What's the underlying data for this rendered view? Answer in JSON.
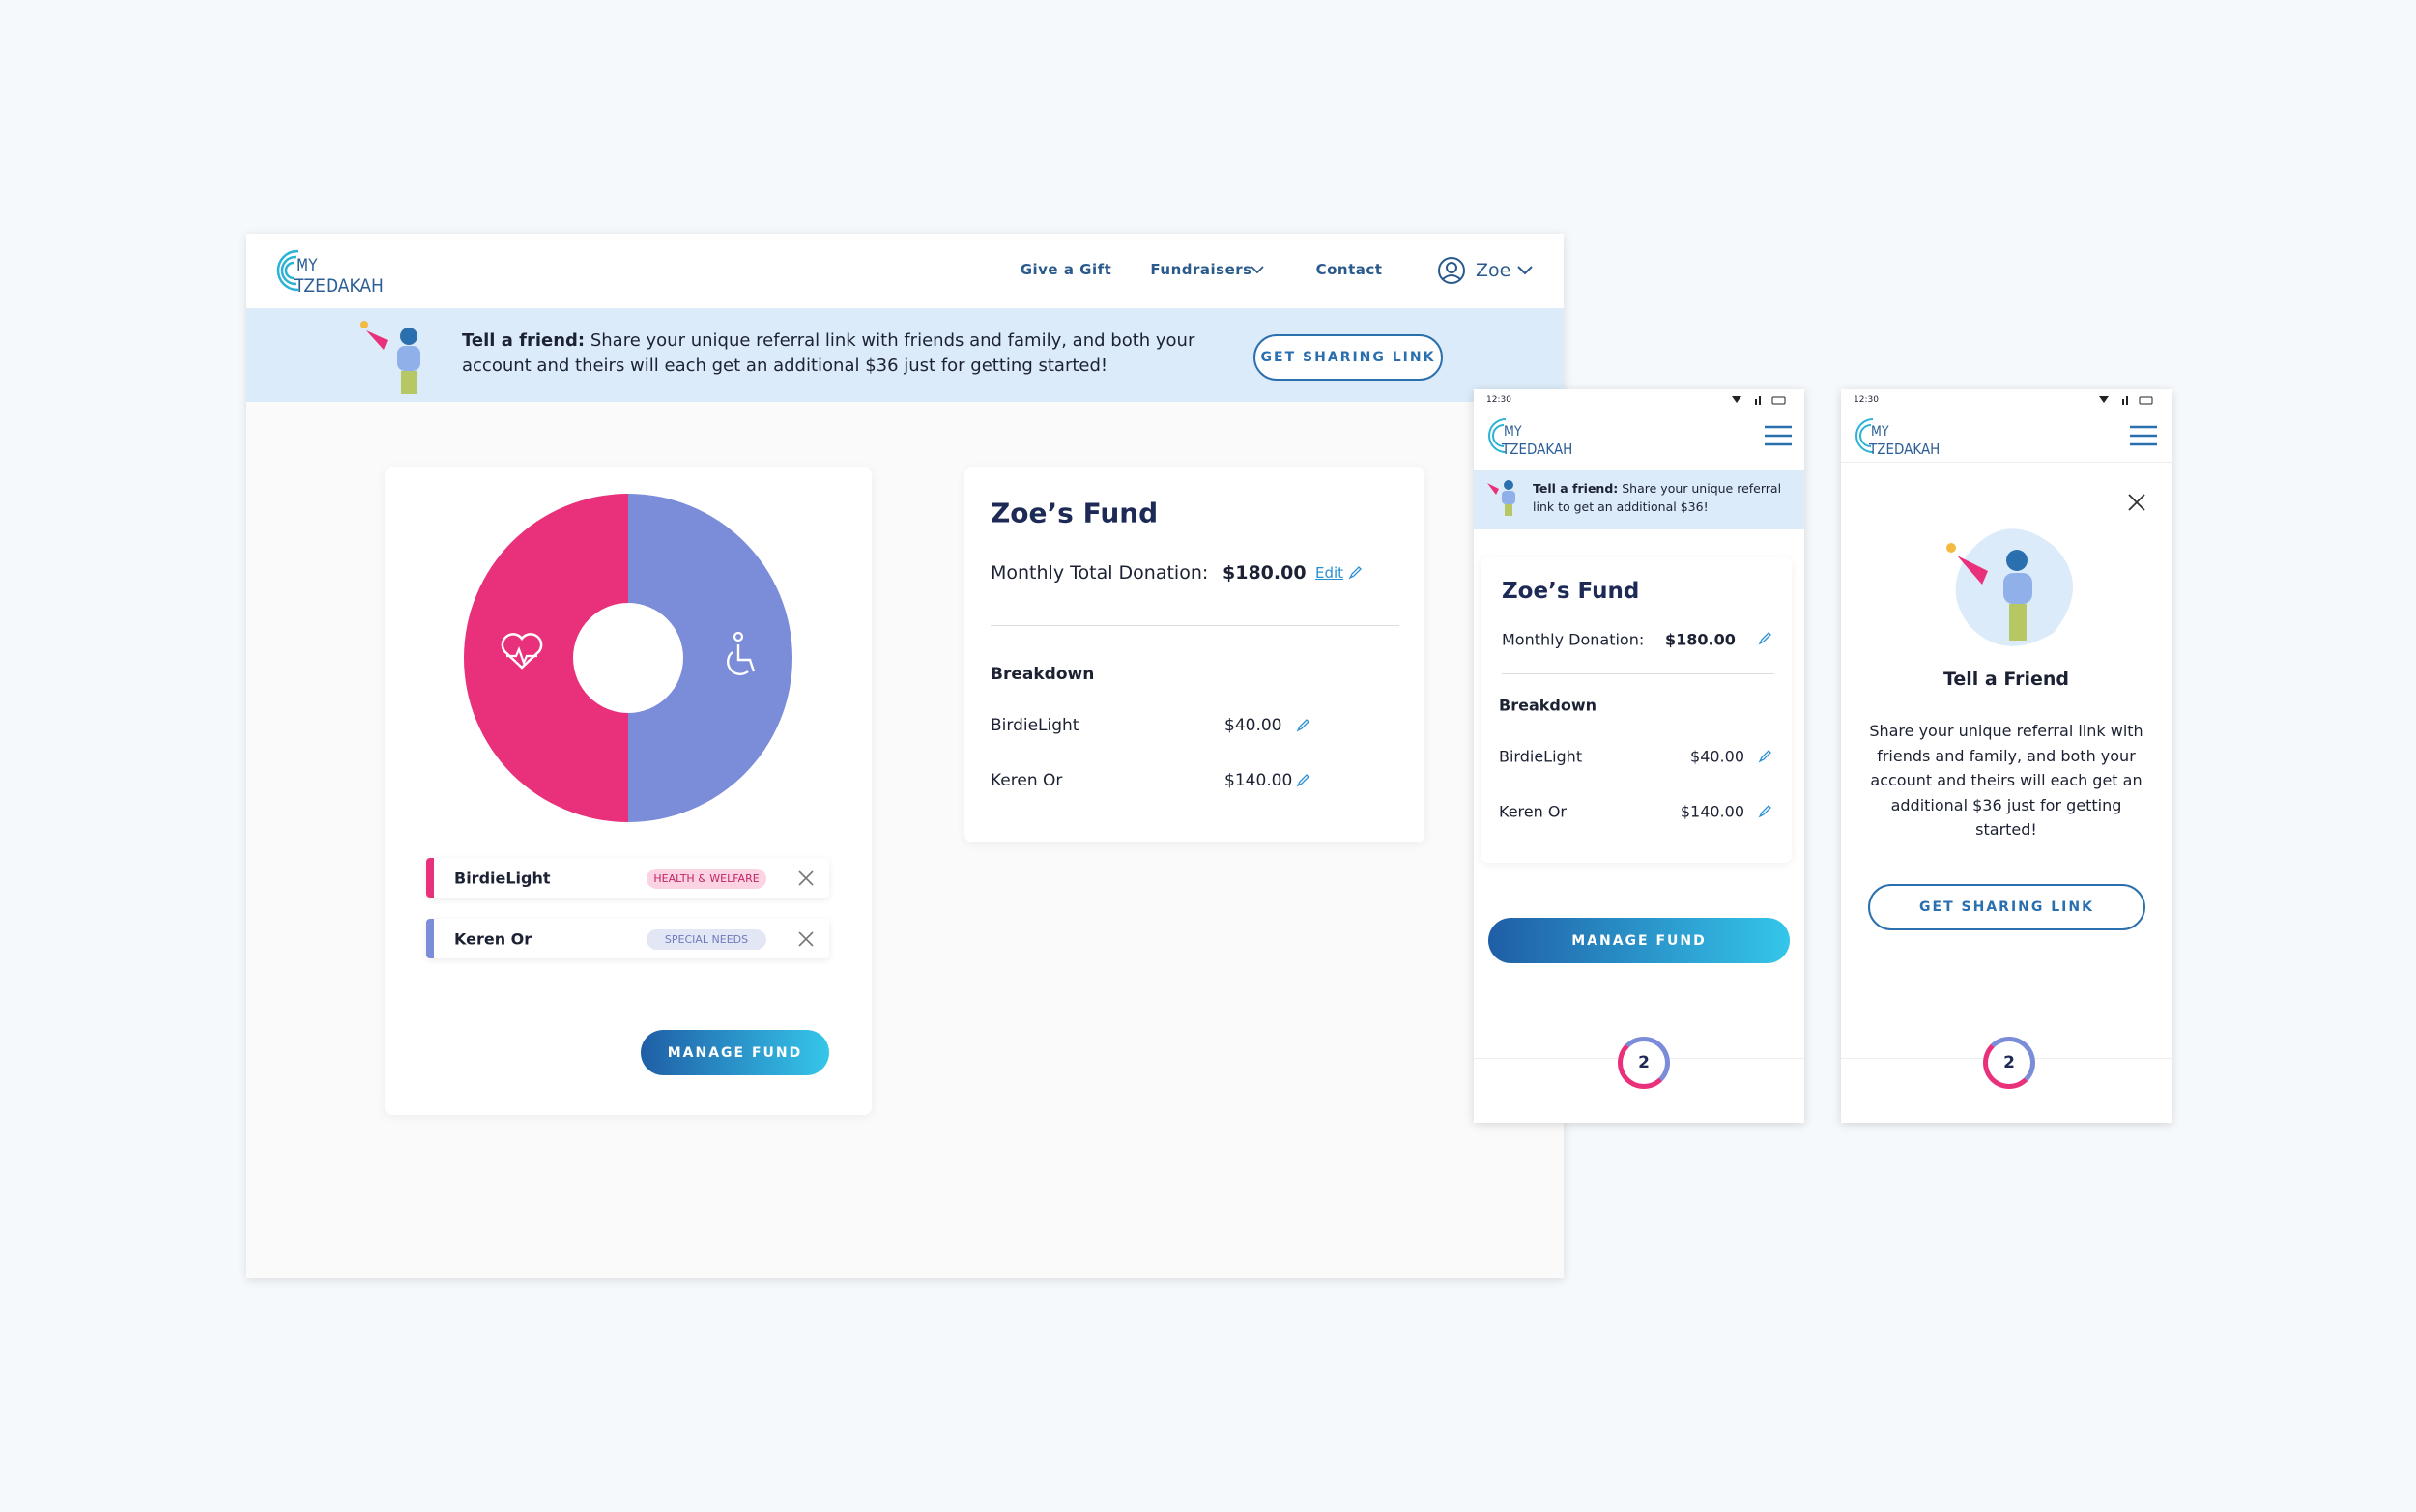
{
  "logo": {
    "line1": "MY",
    "line2": "TZEDAKAH"
  },
  "desktop": {
    "nav": [
      "Give a Gift",
      "Fundraisers",
      "Contact"
    ],
    "user": "Zoe",
    "banner": {
      "lead": "Tell a friend:",
      "text": "Share your unique referral link with friends and family, and both your account and theirs will each get an additional $36 just for getting started!",
      "button": "GET SHARING LINK"
    },
    "charities": [
      {
        "name": "BirdieLight",
        "tag": "HEALTH & WELFARE"
      },
      {
        "name": "Keren Or",
        "tag": "SPECIAL NEEDS"
      }
    ],
    "manage_button": "MANAGE FUND",
    "fund": {
      "title": "Zoe’s Fund",
      "total_label": "Monthly Total Donation:",
      "total": "$180.00",
      "edit": "Edit",
      "breakdown_label": "Breakdown",
      "items": [
        {
          "name": "BirdieLight",
          "amount": "$40.00"
        },
        {
          "name": "Keren Or",
          "amount": "$140.00"
        }
      ]
    }
  },
  "mobile_fund": {
    "time": "12:30",
    "banner": {
      "lead": "Tell a friend:",
      "text": "Share your unique referral link to get an additional $36!"
    },
    "title": "Zoe’s Fund",
    "donation_label": "Monthly Donation:",
    "total": "$180.00",
    "breakdown_label": "Breakdown",
    "items": [
      {
        "name": "BirdieLight",
        "amount": "$40.00"
      },
      {
        "name": "Keren Or",
        "amount": "$140.00"
      }
    ],
    "button": "MANAGE FUND",
    "badge": 2
  },
  "mobile_share": {
    "time": "12:30",
    "title": "Tell a Friend",
    "text": "Share your unique referral link with friends and family, and both your account and theirs will each get an additional $36 just for getting started!",
    "button": "GET SHARING LINK",
    "badge": 2
  }
}
